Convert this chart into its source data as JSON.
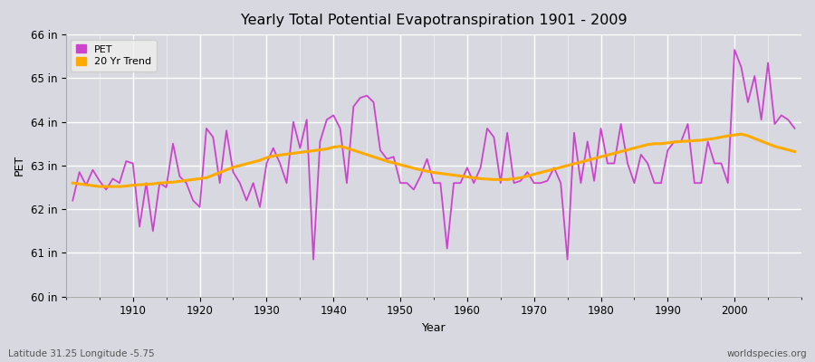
{
  "title": "Yearly Total Potential Evapotranspiration 1901 - 2009",
  "xlabel": "Year",
  "ylabel": "PET",
  "footnote_left": "Latitude 31.25 Longitude -5.75",
  "footnote_right": "worldspecies.org",
  "ylim": [
    60,
    66
  ],
  "ytick_labels": [
    "60 in",
    "61 in",
    "62 in",
    "63 in",
    "64 in",
    "65 in",
    "66 in"
  ],
  "ytick_values": [
    60,
    61,
    62,
    63,
    64,
    65,
    66
  ],
  "pet_color": "#cc44cc",
  "trend_color": "#ffaa00",
  "bg_color": "#e0e0e8",
  "years": [
    1901,
    1902,
    1903,
    1904,
    1905,
    1906,
    1907,
    1908,
    1909,
    1910,
    1911,
    1912,
    1913,
    1914,
    1915,
    1916,
    1917,
    1918,
    1919,
    1920,
    1921,
    1922,
    1923,
    1924,
    1925,
    1926,
    1927,
    1928,
    1929,
    1930,
    1931,
    1932,
    1933,
    1934,
    1935,
    1936,
    1937,
    1938,
    1939,
    1940,
    1941,
    1942,
    1943,
    1944,
    1945,
    1946,
    1947,
    1948,
    1949,
    1950,
    1951,
    1952,
    1953,
    1954,
    1955,
    1956,
    1957,
    1958,
    1959,
    1960,
    1961,
    1962,
    1963,
    1964,
    1965,
    1966,
    1967,
    1968,
    1969,
    1970,
    1971,
    1972,
    1973,
    1974,
    1975,
    1976,
    1977,
    1978,
    1979,
    1980,
    1981,
    1982,
    1983,
    1984,
    1985,
    1986,
    1987,
    1988,
    1989,
    1990,
    1991,
    1992,
    1993,
    1994,
    1995,
    1996,
    1997,
    1998,
    1999,
    2000,
    2001,
    2002,
    2003,
    2004,
    2005,
    2006,
    2007,
    2008,
    2009
  ],
  "pet_values": [
    62.2,
    62.85,
    62.55,
    62.9,
    62.65,
    62.45,
    62.7,
    62.6,
    63.1,
    63.05,
    61.6,
    62.6,
    61.5,
    62.6,
    62.5,
    63.5,
    62.75,
    62.6,
    62.2,
    62.05,
    63.85,
    63.65,
    62.6,
    63.8,
    62.85,
    62.6,
    62.2,
    62.6,
    62.05,
    63.05,
    63.4,
    63.05,
    62.6,
    64.0,
    63.4,
    64.05,
    60.85,
    63.55,
    64.05,
    64.15,
    63.85,
    62.6,
    64.35,
    64.55,
    64.6,
    64.45,
    63.35,
    63.15,
    63.2,
    62.6,
    62.6,
    62.45,
    62.75,
    63.15,
    62.6,
    62.6,
    61.1,
    62.6,
    62.6,
    62.95,
    62.6,
    62.95,
    63.85,
    63.65,
    62.6,
    63.75,
    62.6,
    62.65,
    62.85,
    62.6,
    62.6,
    62.65,
    62.95,
    62.6,
    60.85,
    63.75,
    62.6,
    63.55,
    62.65,
    63.85,
    63.05,
    63.05,
    63.95,
    63.05,
    62.6,
    63.25,
    63.05,
    62.6,
    62.6,
    63.35,
    63.55,
    63.55,
    63.95,
    62.6,
    62.6,
    63.55,
    63.05,
    63.05,
    62.6,
    65.65,
    65.25,
    64.45,
    65.05,
    64.05,
    65.35,
    63.95,
    64.15,
    64.05,
    63.85
  ],
  "trend_values": [
    62.6,
    62.58,
    62.56,
    62.54,
    62.52,
    62.52,
    62.52,
    62.52,
    62.53,
    62.55,
    62.56,
    62.57,
    62.58,
    62.6,
    62.61,
    62.62,
    62.64,
    62.66,
    62.68,
    62.7,
    62.72,
    62.78,
    62.84,
    62.9,
    62.96,
    63.0,
    63.04,
    63.08,
    63.12,
    63.18,
    63.22,
    63.24,
    63.26,
    63.28,
    63.3,
    63.32,
    63.34,
    63.36,
    63.38,
    63.42,
    63.44,
    63.4,
    63.35,
    63.3,
    63.25,
    63.2,
    63.15,
    63.1,
    63.06,
    63.02,
    62.98,
    62.94,
    62.9,
    62.87,
    62.84,
    62.82,
    62.8,
    62.78,
    62.76,
    62.74,
    62.72,
    62.7,
    62.69,
    62.68,
    62.68,
    62.68,
    62.7,
    62.72,
    62.76,
    62.8,
    62.84,
    62.88,
    62.92,
    62.96,
    63.0,
    63.04,
    63.08,
    63.12,
    63.16,
    63.2,
    63.24,
    63.28,
    63.32,
    63.36,
    63.4,
    63.44,
    63.48,
    63.5,
    63.5,
    63.52,
    63.54,
    63.55,
    63.56,
    63.57,
    63.58,
    63.6,
    63.62,
    63.65,
    63.68,
    63.7,
    63.72,
    63.68,
    63.62,
    63.56,
    63.5,
    63.44,
    63.4,
    63.36,
    63.32
  ]
}
